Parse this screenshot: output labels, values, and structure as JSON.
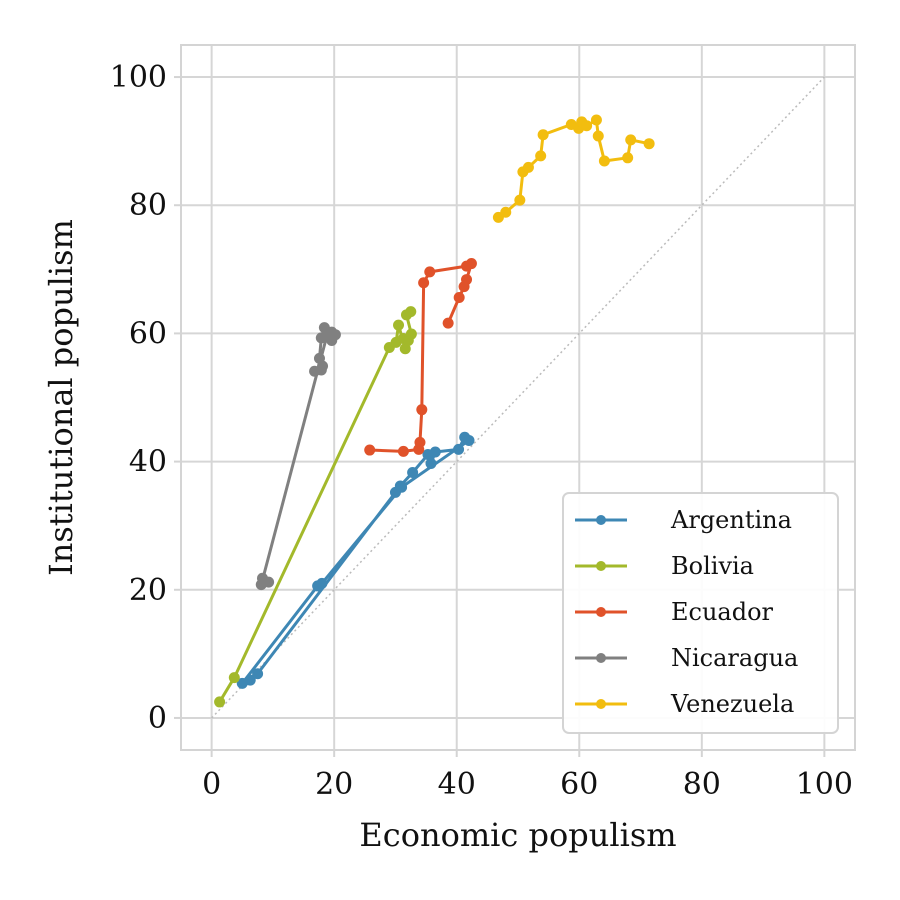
{
  "chart_data": {
    "type": "line",
    "xlabel": "Economic populism",
    "ylabel": "Institutional populism",
    "xlim": [
      -5,
      105
    ],
    "ylim": [
      -5,
      105
    ],
    "xticks": [
      0,
      20,
      40,
      60,
      80,
      100
    ],
    "yticks": [
      0,
      20,
      40,
      60,
      80,
      100
    ],
    "grid": true,
    "legend_position": "lower-right",
    "reference_line": {
      "style": "dotted",
      "from": [
        0,
        0
      ],
      "to": [
        100,
        100
      ],
      "color": "#bbbbbb"
    },
    "series": [
      {
        "name": "Argentina",
        "color": "#3e87b4",
        "points": [
          [
            17.3,
            20.6
          ],
          [
            5.0,
            5.4
          ],
          [
            6.3,
            5.9
          ],
          [
            7.5,
            6.9
          ],
          [
            30.0,
            35.2
          ],
          [
            30.8,
            36.2
          ],
          [
            32.8,
            38.3
          ],
          [
            35.3,
            41.1
          ],
          [
            35.8,
            39.7
          ],
          [
            36.5,
            41.5
          ],
          [
            40.3,
            41.9
          ],
          [
            41.3,
            43.8
          ],
          [
            42.0,
            43.3
          ],
          [
            31.0,
            36.0
          ],
          [
            18.0,
            21.0
          ]
        ]
      },
      {
        "name": "Bolivia",
        "color": "#a3b92b",
        "points": [
          [
            1.3,
            2.5
          ],
          [
            3.7,
            6.3
          ],
          [
            29.0,
            57.8
          ],
          [
            30.1,
            58.6
          ],
          [
            30.5,
            61.3
          ],
          [
            31.6,
            57.6
          ],
          [
            31.3,
            59.2
          ],
          [
            32.1,
            58.9
          ],
          [
            32.6,
            59.9
          ],
          [
            31.8,
            62.9
          ],
          [
            32.5,
            63.4
          ]
        ]
      },
      {
        "name": "Ecuador",
        "color": "#e0522a",
        "points": [
          [
            25.8,
            41.8
          ],
          [
            31.3,
            41.6
          ],
          [
            33.8,
            41.9
          ],
          [
            34.0,
            43.0
          ],
          [
            34.3,
            48.1
          ],
          [
            34.6,
            67.9
          ],
          [
            35.6,
            69.6
          ],
          [
            41.6,
            70.5
          ],
          [
            42.4,
            70.9
          ],
          [
            41.6,
            68.4
          ],
          [
            41.2,
            67.3
          ],
          [
            40.4,
            65.6
          ],
          [
            38.6,
            61.6
          ]
        ]
      },
      {
        "name": "Nicaragua",
        "color": "#808080",
        "points": [
          [
            16.8,
            54.1
          ],
          [
            17.9,
            54.3
          ],
          [
            18.1,
            54.9
          ],
          [
            17.6,
            56.1
          ],
          [
            17.9,
            59.3
          ],
          [
            18.4,
            60.9
          ],
          [
            19.6,
            60.2
          ],
          [
            20.2,
            59.8
          ],
          [
            19.6,
            58.9
          ],
          [
            18.8,
            59.6
          ],
          [
            8.1,
            20.8
          ],
          [
            8.3,
            21.8
          ],
          [
            9.3,
            21.2
          ]
        ]
      },
      {
        "name": "Venezuela",
        "color": "#f2bd0f",
        "points": [
          [
            46.8,
            78.1
          ],
          [
            48.0,
            78.9
          ],
          [
            50.3,
            80.8
          ],
          [
            50.8,
            85.2
          ],
          [
            51.7,
            85.9
          ],
          [
            53.7,
            87.7
          ],
          [
            54.1,
            91.0
          ],
          [
            58.7,
            92.6
          ],
          [
            59.9,
            92.0
          ],
          [
            60.4,
            93.0
          ],
          [
            61.2,
            92.4
          ],
          [
            62.8,
            93.3
          ],
          [
            63.1,
            90.8
          ],
          [
            64.1,
            86.9
          ],
          [
            67.9,
            87.4
          ],
          [
            68.4,
            90.2
          ],
          [
            71.4,
            89.6
          ]
        ]
      }
    ]
  }
}
